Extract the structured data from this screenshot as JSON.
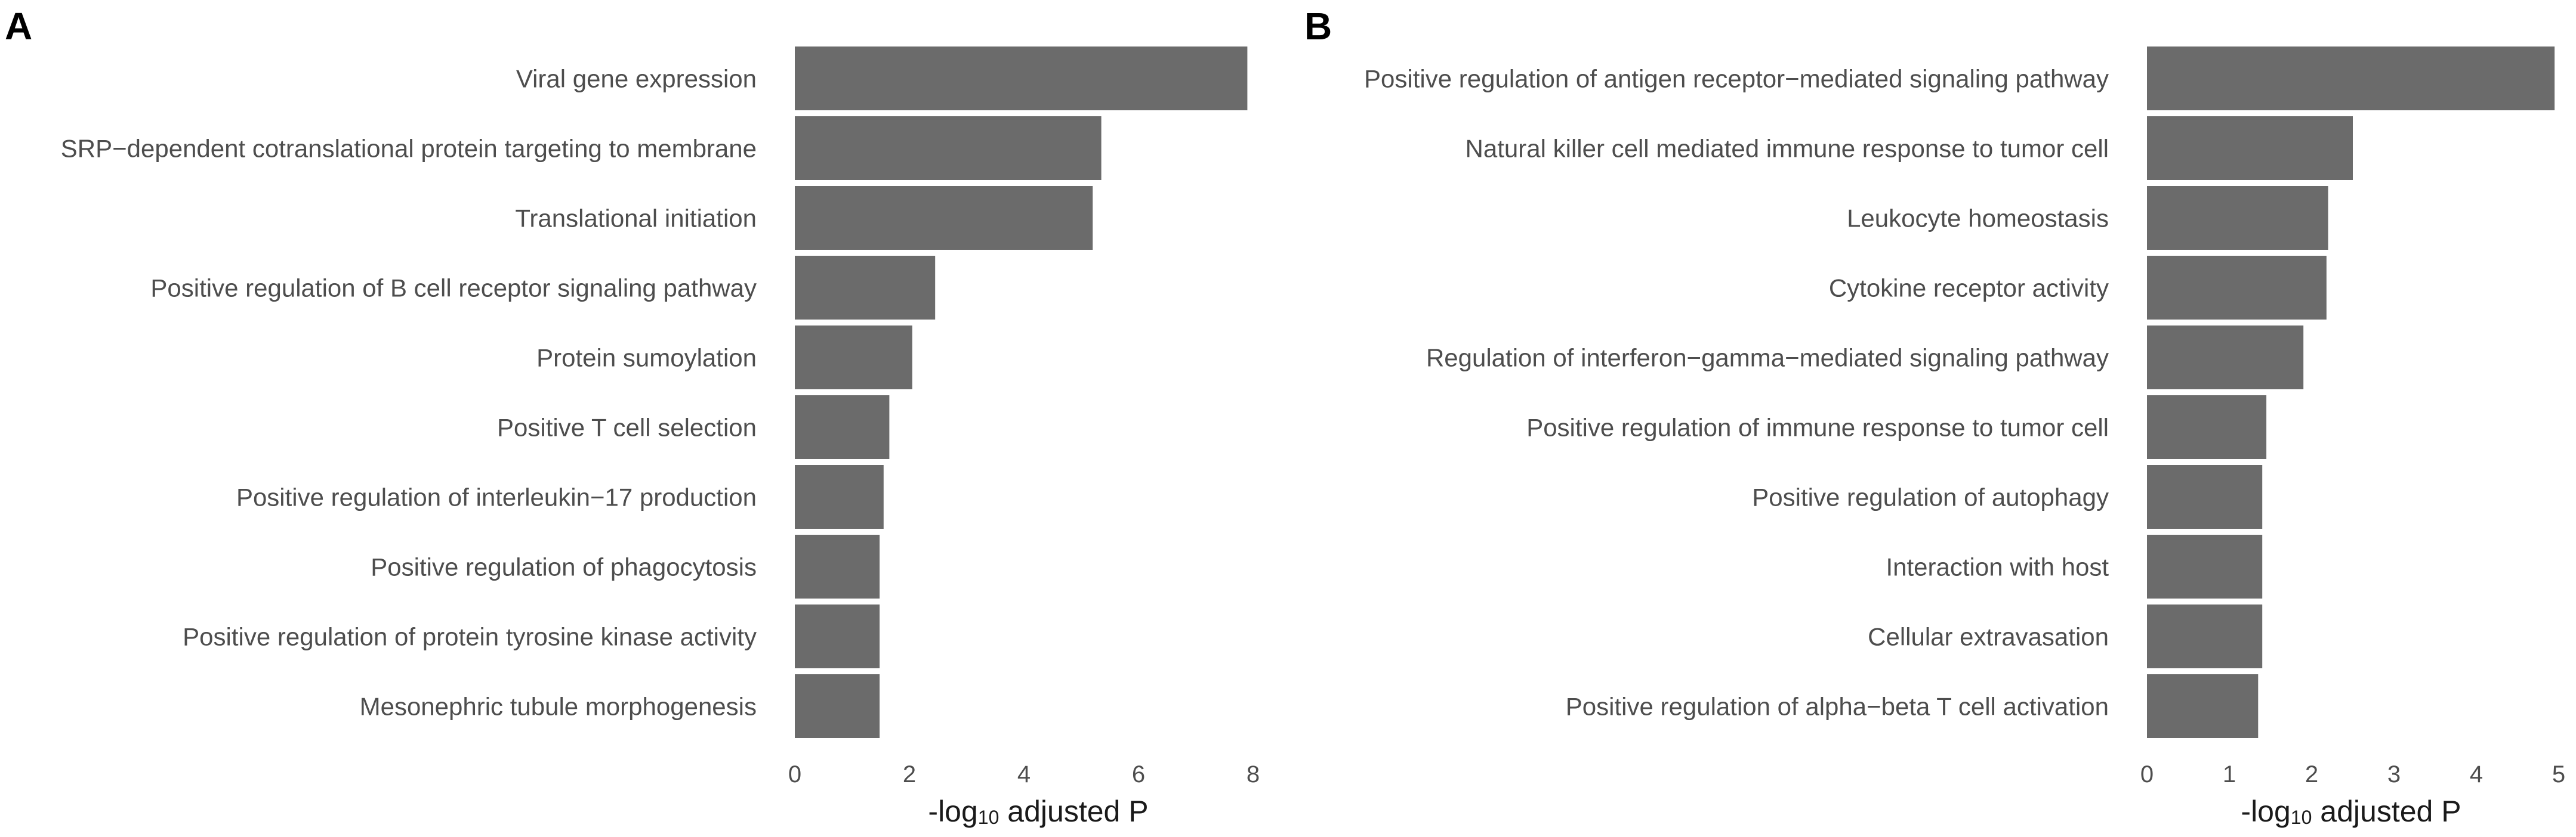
{
  "figure": {
    "bar_color": "#6b6b6b",
    "text_color": "#4d4d4d"
  },
  "chart_data": [
    {
      "type": "bar",
      "orientation": "horizontal",
      "panel_label": "A",
      "categories": [
        "Viral gene expression",
        "SRP−dependent cotranslational protein targeting to membrane",
        "Translational initiation",
        "Positive regulation of B cell receptor signaling pathway",
        "Protein sumoylation",
        "Positive T cell selection",
        "Positive regulation of interleukin−17 production",
        "Positive regulation of phagocytosis",
        "Positive regulation of protein tyrosine kinase activity",
        "Mesonephric tubule morphogenesis"
      ],
      "values": [
        7.9,
        5.35,
        5.2,
        2.45,
        2.05,
        1.65,
        1.55,
        1.48,
        1.48,
        1.48
      ],
      "xlabel_prefix": "-log",
      "xlabel_sub": "10",
      "xlabel_suffix": " adjusted P",
      "xlim": [
        0,
        8
      ],
      "xticks": [
        0,
        2,
        4,
        6,
        8
      ],
      "xtick_labels": [
        "0",
        "2",
        "4",
        "6",
        "8"
      ],
      "grid": false
    },
    {
      "type": "bar",
      "orientation": "horizontal",
      "panel_label": "B",
      "categories": [
        "Positive regulation of antigen receptor−mediated signaling pathway",
        "Natural killer cell mediated immune response to tumor cell",
        "Leukocyte homeostasis",
        "Cytokine receptor activity",
        "Regulation of interferon−gamma−mediated signaling pathway",
        "Positive regulation of immune response to tumor cell",
        "Positive regulation of autophagy",
        "Interaction with host",
        "Cellular extravasation",
        "Positive regulation of alpha−beta T cell activation"
      ],
      "values": [
        4.95,
        2.5,
        2.2,
        2.18,
        1.9,
        1.45,
        1.4,
        1.4,
        1.4,
        1.35
      ],
      "xlabel_prefix": "-log",
      "xlabel_sub": "10",
      "xlabel_suffix": " adjusted P",
      "xlim": [
        0,
        5
      ],
      "xticks": [
        0,
        1,
        2,
        3,
        4,
        5
      ],
      "xtick_labels": [
        "0",
        "1",
        "2",
        "3",
        "4",
        "5"
      ],
      "grid": false
    }
  ]
}
